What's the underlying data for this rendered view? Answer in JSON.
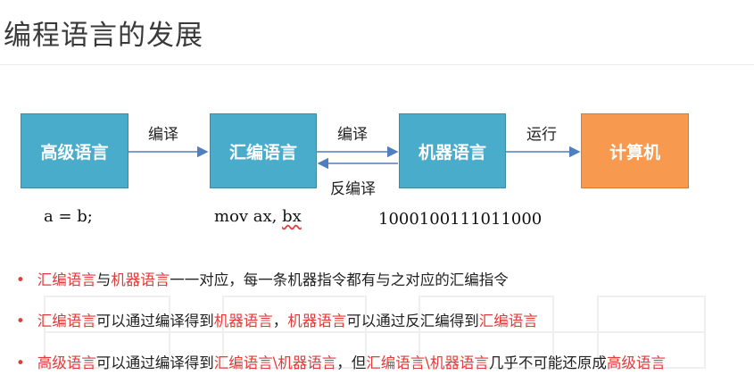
{
  "title": "编程语言的发展",
  "boxes": {
    "high": "高级语言",
    "asm": "汇编语言",
    "machine": "机器语言",
    "computer": "计算机"
  },
  "arrows": {
    "compile1": "编译",
    "compile2": "编译",
    "decompile": "反编译",
    "run": "运行"
  },
  "code": {
    "high_example": "a = b;",
    "asm_prefix": "mov ax, ",
    "asm_reg": "bx",
    "machine_example": "1000100111011000"
  },
  "bullets": [
    {
      "parts": [
        {
          "text": "汇编语言",
          "red": true
        },
        {
          "text": "与",
          "red": false
        },
        {
          "text": "机器语言",
          "red": true
        },
        {
          "text": "一一对应，每一条机器指令都有与之对应的汇编指令",
          "red": false
        }
      ]
    },
    {
      "parts": [
        {
          "text": "汇编语言",
          "red": true
        },
        {
          "text": "可以通过编译得到",
          "red": false
        },
        {
          "text": "机器语言",
          "red": true
        },
        {
          "text": "，",
          "red": false
        },
        {
          "text": "机器语言",
          "red": true
        },
        {
          "text": "可以通过反汇编得到",
          "red": false
        },
        {
          "text": "汇编语言",
          "red": true
        }
      ]
    },
    {
      "parts": [
        {
          "text": "高级语言",
          "red": true
        },
        {
          "text": "可以通过编译得到",
          "red": false
        },
        {
          "text": "汇编语言\\机器语言",
          "red": true
        },
        {
          "text": "，但",
          "red": false
        },
        {
          "text": "汇编语言\\机器语言",
          "red": true
        },
        {
          "text": "几乎不可能还原成",
          "red": false
        },
        {
          "text": "高级语言",
          "red": true
        }
      ]
    }
  ],
  "colors": {
    "box_blue": "#4aaccb",
    "box_orange": "#f79a4f",
    "arrow": "#4f7fbf",
    "highlight_red": "#e23b3b"
  }
}
